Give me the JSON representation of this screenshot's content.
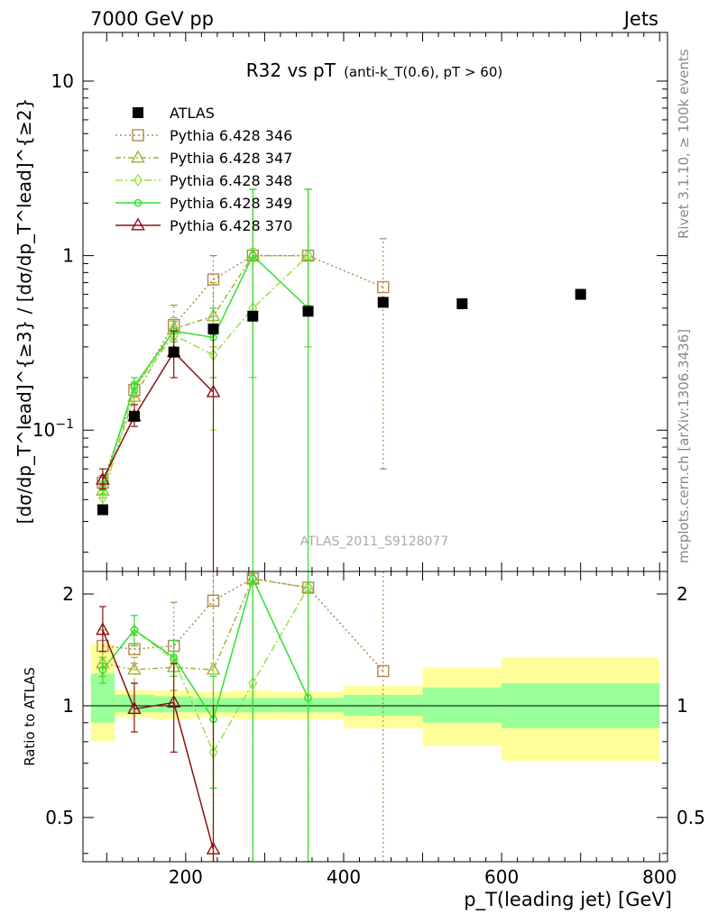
{
  "header": {
    "left": "7000 GeV pp",
    "right": "Jets"
  },
  "side_text": {
    "top": "Rivet 3.1.10, ≥ 100k events",
    "bottom": "mcplots.cern.ch [arXiv:1306.3436]"
  },
  "watermark": "ATLAS_2011_S9128077",
  "chart_data": {
    "type": "line",
    "title": "R32 vs pT",
    "title_sub": "(anti-k_T(0.6), pT > 60)",
    "xlabel": "p_T(leading jet) [GeV]",
    "ylabel": "[dσ/dp_T^lead]^{≥3} / [dσ/dp_T^lead]^{≥2}",
    "ratio_ylabel": "Ratio to ATLAS",
    "x_range": [
      70,
      810
    ],
    "y_range": [
      0.0155,
      19
    ],
    "y_scale": "log",
    "ratio_range": [
      0.38,
      2.3
    ],
    "ratio_scale": "log",
    "x_ticks": [
      "200",
      "400",
      "600",
      "800"
    ],
    "y_ticks": [
      "10^-1",
      "1",
      "10"
    ],
    "ratio_ticks": [
      "0.5",
      "1",
      "2"
    ],
    "legend_position": "top-left",
    "data": {
      "name": "ATLAS",
      "x": [
        95,
        135,
        185,
        235,
        285,
        355,
        450,
        550,
        700
      ],
      "y": [
        0.035,
        0.12,
        0.28,
        0.38,
        0.45,
        0.48,
        0.54,
        0.53,
        0.6
      ]
    },
    "ratio_band_inner": [
      {
        "x": [
          80,
          110
        ],
        "low": 0.9,
        "high": 1.22
      },
      {
        "x": [
          110,
          160
        ],
        "low": 0.96,
        "high": 1.07
      },
      {
        "x": [
          160,
          210
        ],
        "low": 0.96,
        "high": 1.06
      },
      {
        "x": [
          210,
          260
        ],
        "low": 0.96,
        "high": 1.05
      },
      {
        "x": [
          260,
          310
        ],
        "low": 0.96,
        "high": 1.05
      },
      {
        "x": [
          310,
          400
        ],
        "low": 0.96,
        "high": 1.05
      },
      {
        "x": [
          400,
          500
        ],
        "low": 0.94,
        "high": 1.07
      },
      {
        "x": [
          500,
          600
        ],
        "low": 0.9,
        "high": 1.12
      },
      {
        "x": [
          600,
          800
        ],
        "low": 0.87,
        "high": 1.15
      }
    ],
    "ratio_band_outer": [
      {
        "x": [
          80,
          110
        ],
        "low": 0.8,
        "high": 1.47
      },
      {
        "x": [
          110,
          160
        ],
        "low": 0.93,
        "high": 1.1
      },
      {
        "x": [
          160,
          210
        ],
        "low": 0.92,
        "high": 1.1
      },
      {
        "x": [
          210,
          260
        ],
        "low": 0.93,
        "high": 1.09
      },
      {
        "x": [
          260,
          310
        ],
        "low": 0.92,
        "high": 1.1
      },
      {
        "x": [
          310,
          400
        ],
        "low": 0.92,
        "high": 1.09
      },
      {
        "x": [
          400,
          500
        ],
        "low": 0.87,
        "high": 1.13
      },
      {
        "x": [
          500,
          600
        ],
        "low": 0.78,
        "high": 1.27
      },
      {
        "x": [
          600,
          800
        ],
        "low": 0.71,
        "high": 1.35
      }
    ],
    "series": [
      {
        "name": "Pythia 6.428 346",
        "color": "#b08850",
        "dash": "2,3",
        "marker": "square",
        "x": [
          95,
          135,
          185,
          235,
          285,
          355,
          450
        ],
        "y": [
          0.05,
          0.17,
          0.4,
          0.73,
          1.0,
          1.0,
          0.66
        ],
        "err": [
          [
            0.046,
            0.055
          ],
          [
            0.155,
            0.185
          ],
          [
            0.33,
            0.52
          ],
          [
            0.45,
            1.0
          ],
          [
            0.2,
            2.4
          ],
          [
            0.3,
            2.4
          ],
          [
            0.06,
            1.25
          ]
        ],
        "ratio": [
          1.45,
          1.42,
          1.45,
          1.92,
          2.2,
          2.08,
          1.24
        ],
        "ratio_err": [
          [
            1.3,
            1.6
          ],
          [
            1.3,
            1.55
          ],
          [
            1.2,
            1.9
          ],
          [
            0.38,
            2.3
          ],
          [
            0.38,
            2.3
          ],
          [
            0.38,
            2.3
          ],
          [
            0.38,
            2.3
          ]
        ]
      },
      {
        "name": "Pythia 6.428 347",
        "color": "#a8b030",
        "dash": "6,3,2,3",
        "marker": "triangle",
        "x": [
          95,
          135,
          185,
          235,
          285,
          355
        ],
        "y": [
          0.045,
          0.155,
          0.38,
          0.45,
          1.0,
          1.0
        ],
        "err": [
          [
            0.041,
            0.05
          ],
          [
            0.14,
            0.17
          ],
          [
            0.32,
            0.44
          ],
          [
            0.3,
            0.7
          ],
          [
            0.2,
            2.4
          ],
          [
            0.3,
            2.4
          ]
        ],
        "ratio": [
          1.3,
          1.25,
          1.27,
          1.25,
          2.2,
          2.08
        ],
        "ratio_err": [
          [
            1.2,
            1.4
          ],
          [
            1.15,
            1.35
          ],
          [
            1.1,
            1.4
          ],
          [
            0.38,
            2.3
          ],
          [
            0.38,
            2.3
          ],
          [
            0.38,
            2.3
          ]
        ]
      },
      {
        "name": "Pythia 6.428 348",
        "color": "#98e048",
        "dash": "8,3,2,3",
        "marker": "diamond",
        "x": [
          95,
          135,
          185,
          235,
          285,
          355
        ],
        "y": [
          0.041,
          0.175,
          0.35,
          0.27,
          0.5,
          1.0
        ],
        "err": [
          [
            0.037,
            0.045
          ],
          [
            0.16,
            0.19
          ],
          [
            0.3,
            0.4
          ],
          [
            0.1,
            0.45
          ],
          [
            0.2,
            1.1
          ],
          [
            0.3,
            2.4
          ]
        ],
        "ratio": [
          1.25,
          1.6,
          1.33,
          0.75,
          1.15,
          2.08
        ],
        "ratio_err": [
          [
            1.15,
            1.35
          ],
          [
            1.45,
            1.75
          ],
          [
            1.2,
            1.5
          ],
          [
            0.38,
            1.3
          ],
          [
            0.38,
            2.3
          ],
          [
            0.38,
            2.3
          ]
        ]
      },
      {
        "name": "Pythia 6.428 349",
        "color": "#30e030",
        "dash": "",
        "marker": "circle",
        "x": [
          95,
          135,
          185,
          235,
          285,
          355
        ],
        "y": [
          0.047,
          0.18,
          0.37,
          0.34,
          1.0,
          0.5
        ],
        "err": [
          [
            0.043,
            0.051
          ],
          [
            0.165,
            0.2
          ],
          [
            0.32,
            0.42
          ],
          [
            0.2,
            0.5
          ],
          [
            0.0155,
            2.4
          ],
          [
            0.0155,
            2.4
          ]
        ],
        "ratio": [
          1.25,
          1.6,
          1.35,
          0.92,
          2.2,
          1.05
        ],
        "ratio_err": [
          [
            1.15,
            1.35
          ],
          [
            1.45,
            1.75
          ],
          [
            1.2,
            1.5
          ],
          [
            0.6,
            1.2
          ],
          [
            0.38,
            2.3
          ],
          [
            0.38,
            2.3
          ]
        ]
      },
      {
        "name": "Pythia 6.428 370",
        "color": "#8a1010",
        "dash": "",
        "marker": "triangle",
        "x": [
          95,
          135,
          185,
          235
        ],
        "y": [
          0.052,
          0.12,
          0.28,
          0.165
        ],
        "err": [
          [
            0.046,
            0.06
          ],
          [
            0.105,
            0.14
          ],
          [
            0.2,
            0.37
          ],
          [
            0.0155,
            0.4
          ]
        ],
        "ratio": [
          1.6,
          0.98,
          1.02,
          0.41
        ],
        "ratio_err": [
          [
            1.4,
            1.85
          ],
          [
            0.85,
            1.15
          ],
          [
            0.75,
            1.3
          ],
          [
            0.38,
            1.0
          ]
        ]
      }
    ]
  }
}
